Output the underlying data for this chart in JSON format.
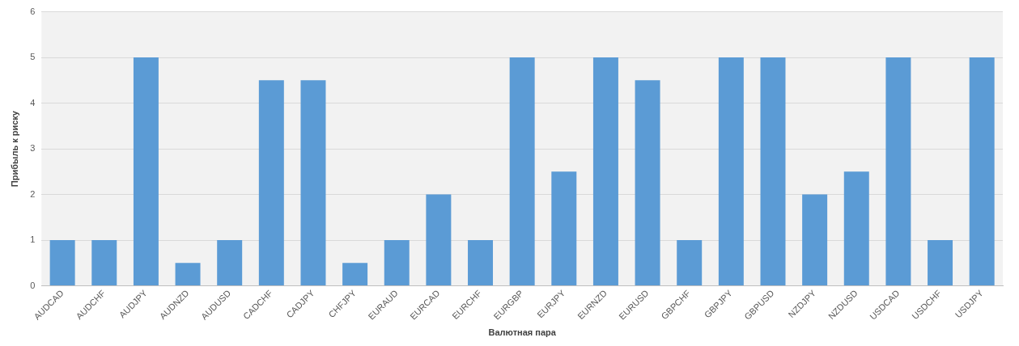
{
  "chart_data": {
    "type": "bar",
    "xlabel": "Валютная пара",
    "ylabel": "Прибыль к риску",
    "categories": [
      "AUDCAD",
      "AUDCHF",
      "AUDJPY",
      "AUDNZD",
      "AUDUSD",
      "CADCHF",
      "CADJPY",
      "CHFJPY",
      "EURAUD",
      "EURCAD",
      "EURCHF",
      "EURGBP",
      "EURJPY",
      "EURNZD",
      "EURUSD",
      "GBPCHF",
      "GBPJPY",
      "GBPUSD",
      "NZDJPY",
      "NZDUSD",
      "USDCAD",
      "USDCHF",
      "USDJPY"
    ],
    "values": [
      1,
      1,
      5,
      0.5,
      1,
      4.5,
      4.5,
      0.5,
      1,
      2,
      1,
      5,
      2.5,
      5,
      4.5,
      1,
      5,
      5,
      2,
      2.5,
      5,
      1,
      5
    ],
    "color": "#5b9bd5",
    "ylim": [
      0,
      6
    ],
    "yticks": [
      0,
      1,
      2,
      3,
      4,
      5,
      6
    ],
    "grid": "y",
    "legend": false
  }
}
